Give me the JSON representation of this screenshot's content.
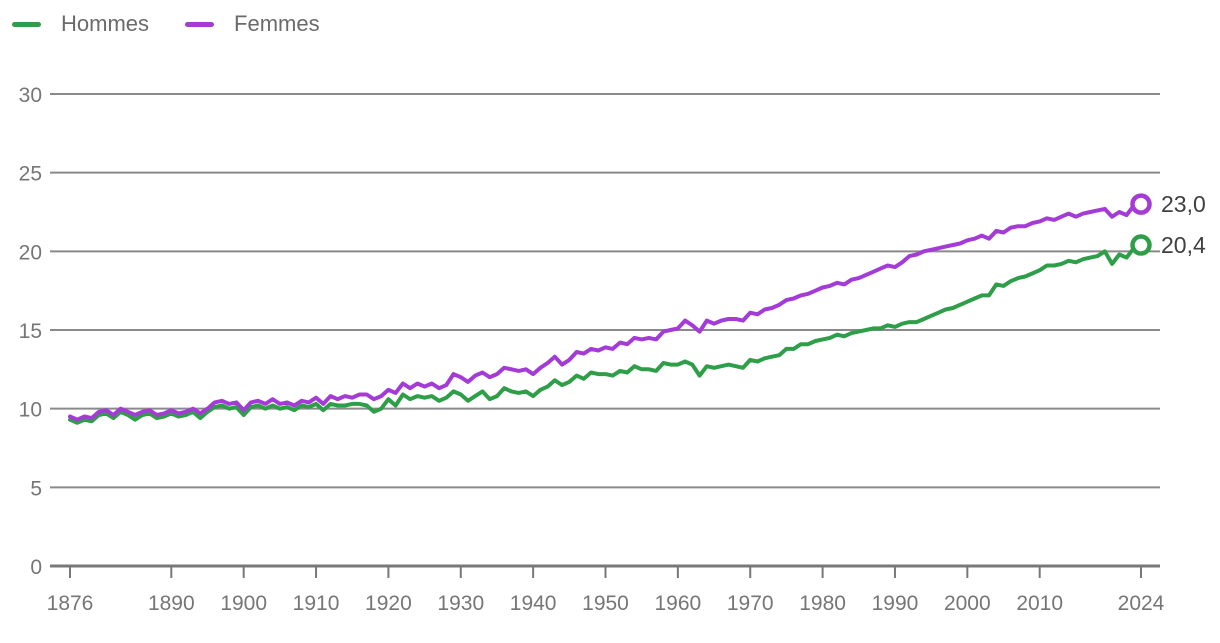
{
  "legend": {
    "items": [
      {
        "label": "Hommes",
        "color": "#2f9e49"
      },
      {
        "label": "Femmes",
        "color": "#a43bd6"
      }
    ]
  },
  "colors": {
    "grid": "#8a8a8a",
    "axis_baseline": "#787878",
    "tick": "#787878",
    "tick_label": "#767676",
    "legend_text": "#6b6b6b",
    "end_label_text": "#404040",
    "marker_fill": "#ffffff"
  },
  "chart_data": {
    "type": "line",
    "title": "",
    "xlabel": "",
    "ylabel": "",
    "grid": true,
    "legend_position": "top-left",
    "x": {
      "start": 1876,
      "end": 2024,
      "step": 1,
      "tick_years": [
        1876,
        1890,
        1900,
        1910,
        1920,
        1930,
        1940,
        1950,
        1960,
        1970,
        1980,
        1990,
        2000,
        2010,
        2024
      ],
      "tick_labels": [
        "1876",
        "1890",
        "1900",
        "1910",
        "1920",
        "1930",
        "1940",
        "1950",
        "1960",
        "1970",
        "1980",
        "1990",
        "2000",
        "2010",
        "2024"
      ]
    },
    "y": {
      "min": 0,
      "max": 30,
      "ticks": [
        0,
        5,
        10,
        15,
        20,
        25,
        30
      ],
      "tick_labels": [
        "0",
        "5",
        "10",
        "15",
        "20",
        "25",
        "30"
      ]
    },
    "series": [
      {
        "name": "Hommes",
        "color": "#2f9e49",
        "end_value": 20.4,
        "end_label": "20,4",
        "values": [
          9.3,
          9.1,
          9.3,
          9.2,
          9.6,
          9.7,
          9.4,
          9.8,
          9.6,
          9.3,
          9.6,
          9.7,
          9.4,
          9.5,
          9.7,
          9.5,
          9.6,
          9.8,
          9.4,
          9.8,
          10.1,
          10.2,
          10.0,
          10.1,
          9.6,
          10.1,
          10.2,
          10.0,
          10.2,
          10.0,
          10.1,
          9.9,
          10.2,
          10.1,
          10.3,
          9.9,
          10.3,
          10.2,
          10.2,
          10.3,
          10.3,
          10.2,
          9.8,
          10.0,
          10.6,
          10.2,
          10.9,
          10.6,
          10.8,
          10.7,
          10.8,
          10.5,
          10.7,
          11.1,
          10.9,
          10.5,
          10.8,
          11.1,
          10.6,
          10.8,
          11.3,
          11.1,
          11.0,
          11.1,
          10.8,
          11.2,
          11.4,
          11.8,
          11.5,
          11.7,
          12.1,
          11.9,
          12.3,
          12.2,
          12.2,
          12.1,
          12.4,
          12.3,
          12.7,
          12.5,
          12.5,
          12.4,
          12.9,
          12.8,
          12.8,
          13.0,
          12.8,
          12.1,
          12.7,
          12.6,
          12.7,
          12.8,
          12.7,
          12.6,
          13.1,
          13.0,
          13.2,
          13.3,
          13.4,
          13.8,
          13.8,
          14.1,
          14.1,
          14.3,
          14.4,
          14.5,
          14.7,
          14.6,
          14.8,
          14.9,
          15.0,
          15.1,
          15.1,
          15.3,
          15.2,
          15.4,
          15.5,
          15.5,
          15.7,
          15.9,
          16.1,
          16.3,
          16.4,
          16.6,
          16.8,
          17.0,
          17.2,
          17.2,
          17.9,
          17.8,
          18.1,
          18.3,
          18.4,
          18.6,
          18.8,
          19.1,
          19.1,
          19.2,
          19.4,
          19.3,
          19.5,
          19.6,
          19.7,
          20.0,
          19.2,
          19.8,
          19.6,
          20.2,
          20.4
        ]
      },
      {
        "name": "Femmes",
        "color": "#a43bd6",
        "end_value": 23.0,
        "end_label": "23,0",
        "values": [
          9.5,
          9.3,
          9.5,
          9.4,
          9.8,
          9.9,
          9.6,
          10.0,
          9.8,
          9.6,
          9.8,
          9.9,
          9.6,
          9.7,
          9.9,
          9.7,
          9.8,
          10.0,
          9.7,
          10.0,
          10.4,
          10.5,
          10.3,
          10.4,
          9.9,
          10.4,
          10.5,
          10.3,
          10.6,
          10.3,
          10.4,
          10.2,
          10.5,
          10.4,
          10.7,
          10.3,
          10.8,
          10.6,
          10.8,
          10.7,
          10.9,
          10.9,
          10.6,
          10.8,
          11.2,
          11.0,
          11.6,
          11.3,
          11.6,
          11.4,
          11.6,
          11.3,
          11.5,
          12.2,
          12.0,
          11.7,
          12.1,
          12.3,
          12.0,
          12.2,
          12.6,
          12.5,
          12.4,
          12.5,
          12.2,
          12.6,
          12.9,
          13.3,
          12.8,
          13.1,
          13.6,
          13.5,
          13.8,
          13.7,
          13.9,
          13.8,
          14.2,
          14.1,
          14.5,
          14.4,
          14.5,
          14.4,
          14.9,
          15.0,
          15.1,
          15.6,
          15.3,
          14.9,
          15.6,
          15.4,
          15.6,
          15.7,
          15.7,
          15.6,
          16.1,
          16.0,
          16.3,
          16.4,
          16.6,
          16.9,
          17.0,
          17.2,
          17.3,
          17.5,
          17.7,
          17.8,
          18.0,
          17.9,
          18.2,
          18.3,
          18.5,
          18.7,
          18.9,
          19.1,
          19.0,
          19.3,
          19.7,
          19.8,
          20.0,
          20.1,
          20.2,
          20.3,
          20.4,
          20.5,
          20.7,
          20.8,
          21.0,
          20.8,
          21.3,
          21.2,
          21.5,
          21.6,
          21.6,
          21.8,
          21.9,
          22.1,
          22.0,
          22.2,
          22.4,
          22.2,
          22.4,
          22.5,
          22.6,
          22.7,
          22.2,
          22.5,
          22.3,
          22.9,
          23.0
        ]
      }
    ]
  }
}
